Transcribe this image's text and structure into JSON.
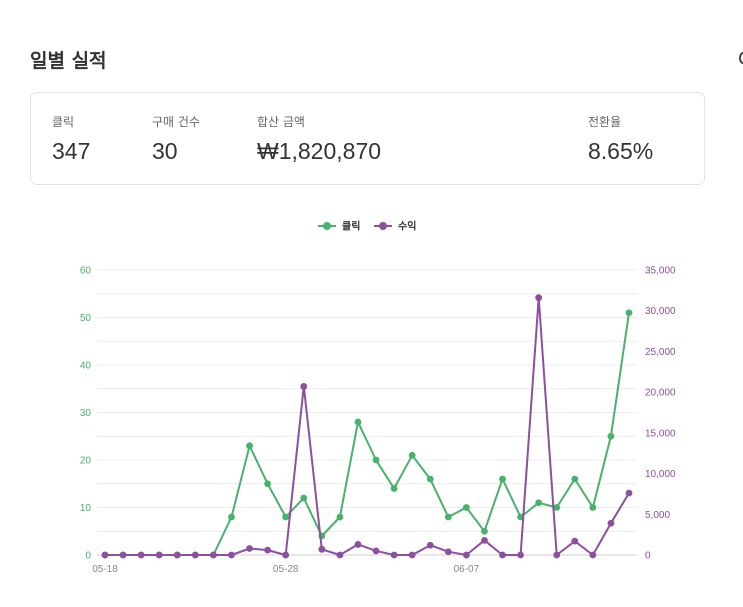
{
  "page": {
    "title": "일별 실적"
  },
  "summary": {
    "clicks": {
      "label": "클릭",
      "value": "347"
    },
    "orders": {
      "label": "구매 건수",
      "value": "30"
    },
    "amount": {
      "label": "합산 금액",
      "value": "₩1,820,870"
    },
    "conversion": {
      "label": "전환율",
      "value": "8.65%"
    }
  },
  "chart_data": {
    "type": "line",
    "x": [
      "05-18",
      "05-19",
      "05-20",
      "05-21",
      "05-22",
      "05-23",
      "05-24",
      "05-25",
      "05-26",
      "05-27",
      "05-28",
      "05-29",
      "05-30",
      "05-31",
      "06-01",
      "06-02",
      "06-03",
      "06-04",
      "06-05",
      "06-06",
      "06-07",
      "06-08",
      "06-09",
      "06-10",
      "06-11",
      "06-12",
      "06-13",
      "06-14",
      "06-15",
      "06-16"
    ],
    "x_tick_labels": [
      "05-18",
      "05-28",
      "06-07"
    ],
    "series": [
      {
        "name": "클릭",
        "axis": "left",
        "color": "#48b26c",
        "values": [
          0,
          0,
          0,
          0,
          0,
          0,
          0,
          8,
          23,
          15,
          8,
          12,
          4,
          8,
          28,
          20,
          14,
          21,
          16,
          8,
          10,
          5,
          16,
          8,
          11,
          10,
          16,
          10,
          25,
          51
        ]
      },
      {
        "name": "수익",
        "axis": "right",
        "color": "#8d4fa0",
        "values": [
          0,
          0,
          0,
          0,
          0,
          0,
          0,
          0,
          800,
          600,
          0,
          20700,
          700,
          0,
          1300,
          500,
          0,
          0,
          1200,
          400,
          0,
          1800,
          0,
          0,
          31600,
          0,
          1700,
          0,
          3900,
          7600
        ]
      }
    ],
    "y_left": {
      "min": 0,
      "max": 60,
      "ticks": [
        "0",
        "10",
        "20",
        "30",
        "40",
        "50",
        "60"
      ],
      "color": "#48b26c"
    },
    "y_right": {
      "min": 0,
      "max": 35000,
      "ticks": [
        "0",
        "5,000",
        "10,000",
        "15,000",
        "20,000",
        "25,000",
        "30,000",
        "35,000"
      ],
      "color": "#8d4fa0"
    },
    "grid": true,
    "legend": "top-center"
  }
}
